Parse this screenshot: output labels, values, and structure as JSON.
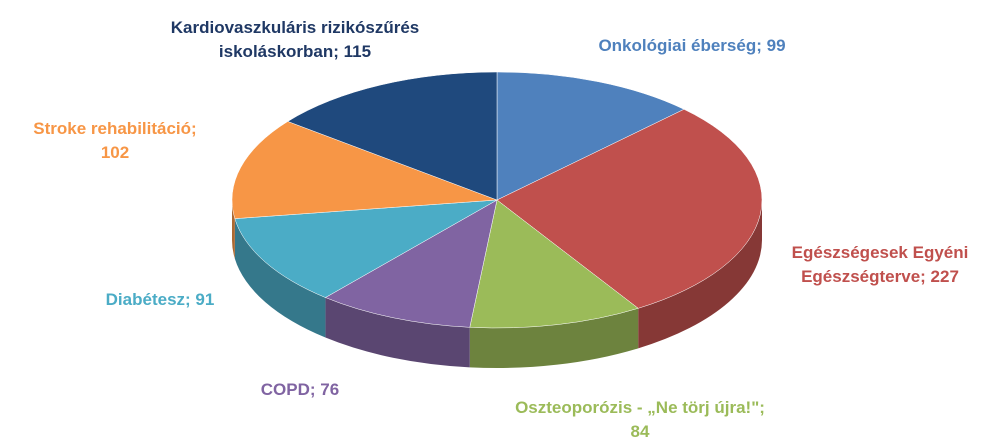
{
  "chart_data": {
    "type": "pie3d",
    "categories": [
      "Onkológiai éberség",
      "Egészségesek Egyéni Egészségterve",
      "Oszteoporózis - „Ne törj újra!\"",
      "COPD",
      "Diabétesz",
      "Stroke rehabilitáció",
      "Kardiovaszkuláris rizikószűrés iskoláskorban"
    ],
    "values": [
      99,
      227,
      84,
      76,
      91,
      102,
      115
    ],
    "colors": [
      "#4f81bd",
      "#c0504d",
      "#9bbb59",
      "#8064a2",
      "#4bacc6",
      "#f79646",
      "#1f497d"
    ],
    "label_colors": [
      "#4f81bd",
      "#c0504d",
      "#9bbb59",
      "#8064a2",
      "#4bacc6",
      "#f79646",
      "#1f3864"
    ]
  }
}
